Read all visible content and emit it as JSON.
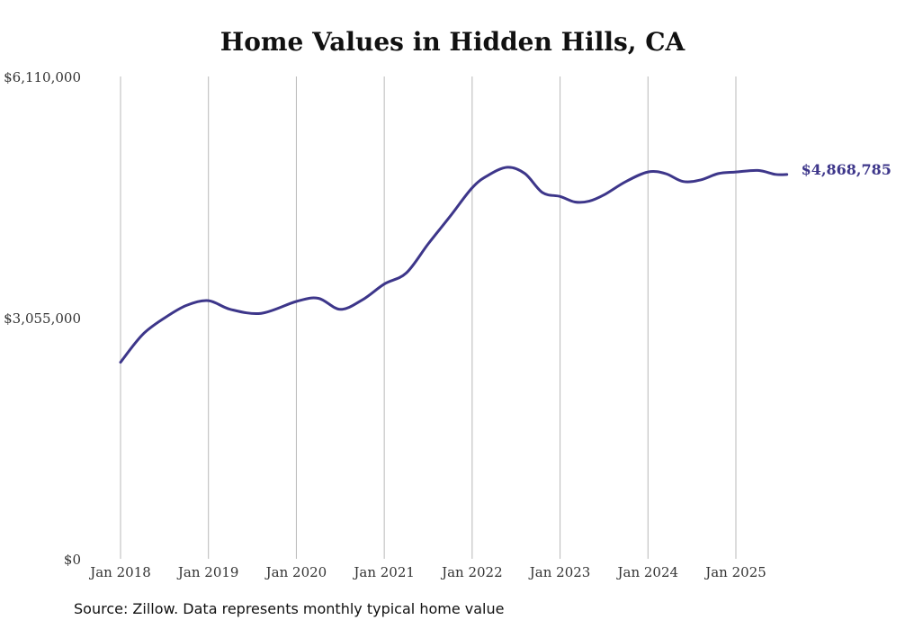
{
  "chart_data": {
    "type": "line",
    "title": "Home Values in Hidden Hills, CA",
    "source": "Source: Zillow. Data represents monthly typical home value",
    "ylim": [
      0,
      6110000
    ],
    "y_ticks": [
      {
        "value": 0,
        "label": "$0"
      },
      {
        "value": 3055000,
        "label": "$3,055,000"
      },
      {
        "value": 6110000,
        "label": "$6,110,000"
      }
    ],
    "x_ticks": [
      {
        "value": 2018.0,
        "label": "Jan 2018"
      },
      {
        "value": 2019.0,
        "label": "Jan 2019"
      },
      {
        "value": 2020.0,
        "label": "Jan 2020"
      },
      {
        "value": 2021.0,
        "label": "Jan 2021"
      },
      {
        "value": 2022.0,
        "label": "Jan 2022"
      },
      {
        "value": 2023.0,
        "label": "Jan 2023"
      },
      {
        "value": 2024.0,
        "label": "Jan 2024"
      },
      {
        "value": 2025.0,
        "label": "Jan 2025"
      }
    ],
    "grid": "vertical",
    "color": "#3d368a",
    "end_label": "$4,868,785",
    "series": [
      {
        "name": "Typical home value",
        "x": [
          2018.0,
          2018.25,
          2018.5,
          2018.75,
          2019.0,
          2019.25,
          2019.6,
          2020.0,
          2020.25,
          2020.5,
          2020.75,
          2021.0,
          2021.25,
          2021.5,
          2021.75,
          2022.0,
          2022.17,
          2022.4,
          2022.6,
          2022.8,
          2023.0,
          2023.17,
          2023.33,
          2023.5,
          2023.75,
          2024.0,
          2024.2,
          2024.4,
          2024.6,
          2024.8,
          2025.0,
          2025.25,
          2025.45,
          2025.58
        ],
        "values": [
          2490000,
          2840000,
          3050000,
          3210000,
          3270000,
          3160000,
          3110000,
          3260000,
          3300000,
          3160000,
          3280000,
          3480000,
          3620000,
          3990000,
          4340000,
          4700000,
          4850000,
          4960000,
          4880000,
          4640000,
          4590000,
          4520000,
          4530000,
          4610000,
          4780000,
          4900000,
          4880000,
          4780000,
          4800000,
          4880000,
          4900000,
          4920000,
          4870000,
          4868785
        ]
      }
    ]
  }
}
